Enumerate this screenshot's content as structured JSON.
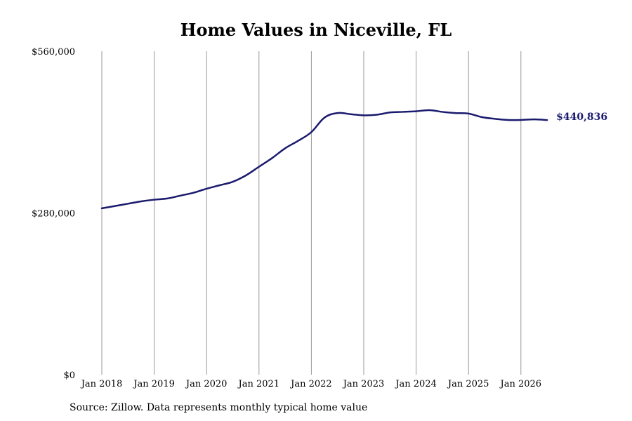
{
  "chart_data": {
    "type": "line",
    "title": "Home Values in Niceville, FL",
    "xlabel": "",
    "ylabel": "",
    "x_ticks": [
      "Jan 2018",
      "Jan 2019",
      "Jan 2020",
      "Jan 2021",
      "Jan 2022",
      "Jan 2023",
      "Jan 2024",
      "Jan 2025",
      "Jan 2026"
    ],
    "y_ticks": [
      {
        "value": 0,
        "label": "$0"
      },
      {
        "value": 280000,
        "label": "$280,000"
      },
      {
        "value": 560000,
        "label": "$560,000"
      }
    ],
    "ylim": [
      0,
      560000
    ],
    "xlim": [
      "2018-01",
      "2026-07"
    ],
    "grid": {
      "vertical": true,
      "horizontal": false
    },
    "line_color": "#1a1a6e",
    "grid_color": "#999999",
    "end_label": "$440,836",
    "series": [
      {
        "x": [
          "2018-01",
          "2018-04",
          "2018-07",
          "2018-10",
          "2019-01",
          "2019-04",
          "2019-07",
          "2019-10",
          "2020-01",
          "2020-04",
          "2020-07",
          "2020-10",
          "2021-01",
          "2021-04",
          "2021-07",
          "2021-10",
          "2022-01",
          "2022-04",
          "2022-07",
          "2022-10",
          "2023-01",
          "2023-04",
          "2023-07",
          "2023-10",
          "2024-01",
          "2024-04",
          "2024-07",
          "2024-10",
          "2025-01",
          "2025-04",
          "2025-07",
          "2025-10",
          "2026-01",
          "2026-04",
          "2026-07"
        ],
        "values": [
          288000,
          292000,
          296000,
          300000,
          303000,
          305000,
          310000,
          315000,
          322000,
          328000,
          334000,
          345000,
          360000,
          375000,
          392000,
          405000,
          420000,
          445000,
          453000,
          451000,
          449000,
          450000,
          454000,
          455000,
          456000,
          458000,
          455000,
          453000,
          452000,
          446000,
          443000,
          441000,
          441000,
          442000,
          440836
        ]
      }
    ]
  },
  "footer": {
    "source_note": "Source: Zillow. Data represents monthly typical home value"
  }
}
